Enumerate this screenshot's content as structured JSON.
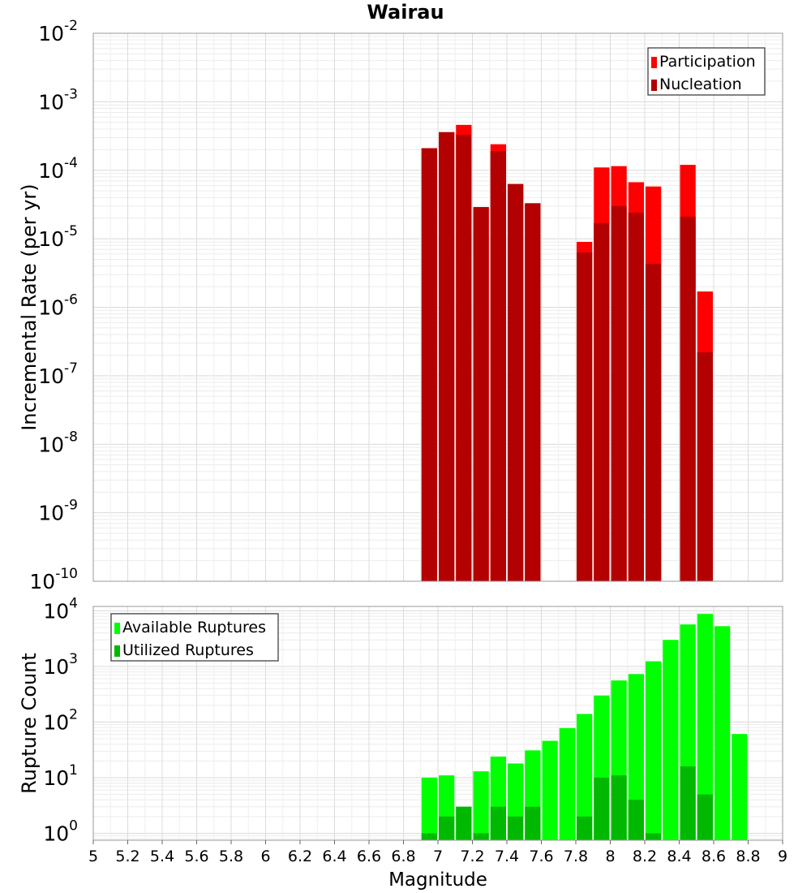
{
  "chart_data": [
    {
      "type": "bar",
      "title": "Wairau",
      "xlabel": "",
      "ylabel": "Incremental Rate (per yr)",
      "yscale": "log",
      "ylim": [
        1e-10,
        0.01
      ],
      "xlim": [
        5,
        9
      ],
      "grid": true,
      "legend_position": "top-right",
      "bin_width": 0.1,
      "y_tick_labels": [
        {
          "base": "10",
          "exp": "-10"
        },
        {
          "base": "10",
          "exp": "-9"
        },
        {
          "base": "10",
          "exp": "-8"
        },
        {
          "base": "10",
          "exp": "-7"
        },
        {
          "base": "10",
          "exp": "-6"
        },
        {
          "base": "10",
          "exp": "-5"
        },
        {
          "base": "10",
          "exp": "-4"
        },
        {
          "base": "10",
          "exp": "-3"
        },
        {
          "base": "10",
          "exp": "-2"
        }
      ],
      "series": [
        {
          "name": "Participation",
          "color": "#ff0000",
          "points": [
            {
              "x": 6.95,
              "y": 0.00021
            },
            {
              "x": 7.05,
              "y": 0.00036
            },
            {
              "x": 7.15,
              "y": 0.00046
            },
            {
              "x": 7.25,
              "y": 2.9e-05
            },
            {
              "x": 7.35,
              "y": 0.00024
            },
            {
              "x": 7.45,
              "y": 6.3e-05
            },
            {
              "x": 7.55,
              "y": 3.3e-05
            },
            {
              "x": 7.85,
              "y": 9e-06
            },
            {
              "x": 7.95,
              "y": 0.00011
            },
            {
              "x": 8.05,
              "y": 0.000115
            },
            {
              "x": 8.15,
              "y": 6.7e-05
            },
            {
              "x": 8.25,
              "y": 5.8e-05
            },
            {
              "x": 8.45,
              "y": 0.00012
            },
            {
              "x": 8.55,
              "y": 1.7e-06
            }
          ]
        },
        {
          "name": "Nucleation",
          "color": "#b30000",
          "points": [
            {
              "x": 6.95,
              "y": 0.00021
            },
            {
              "x": 7.05,
              "y": 0.00036
            },
            {
              "x": 7.15,
              "y": 0.00033
            },
            {
              "x": 7.25,
              "y": 2.9e-05
            },
            {
              "x": 7.35,
              "y": 0.00019
            },
            {
              "x": 7.45,
              "y": 6.3e-05
            },
            {
              "x": 7.55,
              "y": 3.3e-05
            },
            {
              "x": 7.85,
              "y": 6.3e-06
            },
            {
              "x": 7.95,
              "y": 1.7e-05
            },
            {
              "x": 8.05,
              "y": 3e-05
            },
            {
              "x": 8.15,
              "y": 2.4e-05
            },
            {
              "x": 8.25,
              "y": 4.3e-06
            },
            {
              "x": 8.45,
              "y": 2.1e-05
            },
            {
              "x": 8.55,
              "y": 2.2e-07
            }
          ]
        }
      ]
    },
    {
      "type": "bar",
      "title": "",
      "xlabel": "Magnitude",
      "ylabel": "Rupture Count",
      "yscale": "log",
      "ylim": [
        0.75,
        12000
      ],
      "xlim": [
        5,
        9
      ],
      "grid": true,
      "legend_position": "top-left",
      "bin_width": 0.1,
      "x_tick_labels": [
        "5",
        "5.2",
        "5.4",
        "5.6",
        "5.8",
        "6",
        "6.2",
        "6.4",
        "6.6",
        "6.8",
        "7",
        "7.2",
        "7.4",
        "7.6",
        "7.8",
        "8",
        "8.2",
        "8.4",
        "8.6",
        "8.8",
        "9"
      ],
      "y_tick_labels": [
        {
          "base": "10",
          "exp": "0"
        },
        {
          "base": "10",
          "exp": "1"
        },
        {
          "base": "10",
          "exp": "2"
        },
        {
          "base": "10",
          "exp": "3"
        },
        {
          "base": "10",
          "exp": "4"
        }
      ],
      "series": [
        {
          "name": "Available Ruptures",
          "color": "#00ff00",
          "points": [
            {
              "x": 6.95,
              "y": 10
            },
            {
              "x": 7.05,
              "y": 11
            },
            {
              "x": 7.15,
              "y": 3
            },
            {
              "x": 7.25,
              "y": 13
            },
            {
              "x": 7.35,
              "y": 24
            },
            {
              "x": 7.45,
              "y": 18
            },
            {
              "x": 7.55,
              "y": 31
            },
            {
              "x": 7.65,
              "y": 46
            },
            {
              "x": 7.75,
              "y": 78
            },
            {
              "x": 7.85,
              "y": 140
            },
            {
              "x": 7.95,
              "y": 300
            },
            {
              "x": 8.05,
              "y": 560
            },
            {
              "x": 8.15,
              "y": 730
            },
            {
              "x": 8.25,
              "y": 1240
            },
            {
              "x": 8.35,
              "y": 3000
            },
            {
              "x": 8.45,
              "y": 5700
            },
            {
              "x": 8.55,
              "y": 8800
            },
            {
              "x": 8.65,
              "y": 5300
            },
            {
              "x": 8.75,
              "y": 61
            }
          ]
        },
        {
          "name": "Utilized Ruptures",
          "color": "#00b800",
          "points": [
            {
              "x": 6.95,
              "y": 1
            },
            {
              "x": 7.05,
              "y": 2
            },
            {
              "x": 7.15,
              "y": 3
            },
            {
              "x": 7.25,
              "y": 1
            },
            {
              "x": 7.35,
              "y": 3
            },
            {
              "x": 7.45,
              "y": 2
            },
            {
              "x": 7.55,
              "y": 3
            },
            {
              "x": 7.85,
              "y": 2
            },
            {
              "x": 7.95,
              "y": 10
            },
            {
              "x": 8.05,
              "y": 11
            },
            {
              "x": 8.15,
              "y": 4
            },
            {
              "x": 8.25,
              "y": 1
            },
            {
              "x": 8.45,
              "y": 16
            },
            {
              "x": 8.55,
              "y": 5
            }
          ]
        }
      ]
    }
  ]
}
